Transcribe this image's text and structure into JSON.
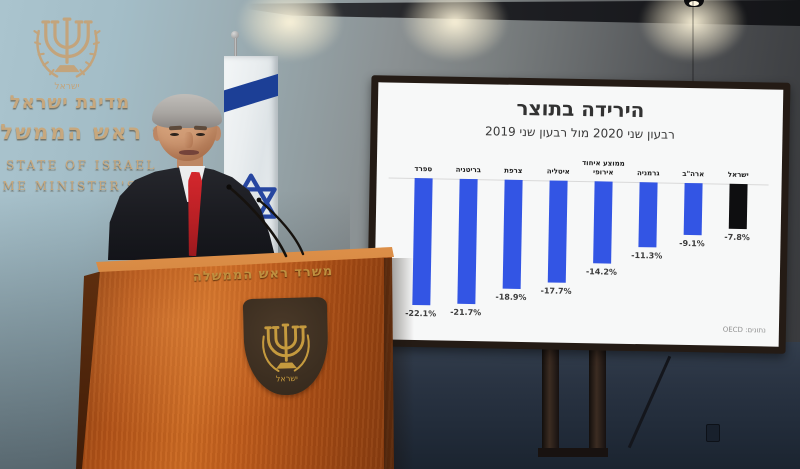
{
  "signage": {
    "hebrew_line1": "מדינת ישראל",
    "hebrew_line2": "משרד ראש הממשלה",
    "english_line1": "STATE OF ISRAEL",
    "english_line2": "PRIME MINISTER'S OFFICE"
  },
  "wall_emblem": {
    "caption": "ישראל"
  },
  "podium": {
    "header": "משרד ראש הממשלה",
    "emblem_caption": "ישראל"
  },
  "chart_data": {
    "type": "bar",
    "title": "הירידה בתוצר",
    "subtitle": "רבעון שני 2020 מול רבעון שני 2019",
    "source": "נתונים: OECD",
    "unit": "%",
    "categories": [
      "ספרד",
      "בריטניה",
      "צרפת",
      "איטליה",
      "ממוצע איחוד אירופי",
      "גרמניה",
      "ארה\"ב",
      "ישראל"
    ],
    "categories_display": [
      "ספרד",
      "בריטניה",
      "צרפת",
      "איטליה",
      "ממוצע איחוד\nאירופי",
      "גרמניה",
      "ארה\"ב",
      "ישראל"
    ],
    "values": [
      -22.1,
      -21.7,
      -18.9,
      -17.7,
      -14.2,
      -11.3,
      -9.1,
      -7.8
    ],
    "value_labels": [
      "-22.1%",
      "-21.7%",
      "-18.9%",
      "-17.7%",
      "-14.2%",
      "-11.3%",
      "-9.1%",
      "-7.8%"
    ],
    "bar_colors": [
      "#3355e4",
      "#3355e4",
      "#3355e4",
      "#3355e4",
      "#3355e4",
      "#3355e4",
      "#3355e4",
      "#0e0e10"
    ],
    "highlight_category": "ישראל",
    "baseline": 0,
    "ylim": [
      -24,
      0
    ],
    "grid": false,
    "legend": false
  },
  "colors": {
    "bar_blue": "#3355e4",
    "bar_black": "#0e0e10",
    "screen_white": "#f7f8f8",
    "wall_blue": "#aac4ce",
    "signage_gold": "#c7a87e",
    "podium_wood": "#bf5c1c",
    "podium_gold": "#bf8f3f",
    "flag_blue": "#1c3f96",
    "tie_red": "#c8252b"
  }
}
